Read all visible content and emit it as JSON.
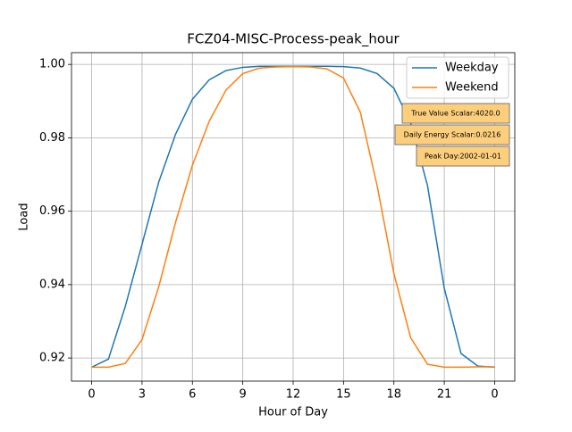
{
  "chart_data": {
    "type": "line",
    "title": "FCZ04-MISC-Process-peak_hour",
    "x_label": "Hour of Day",
    "y_label": "Load",
    "x": [
      0,
      1,
      2,
      3,
      4,
      5,
      6,
      7,
      8,
      9,
      10,
      11,
      12,
      13,
      14,
      15,
      16,
      17,
      18,
      19,
      20,
      21,
      22,
      23,
      24
    ],
    "series": [
      {
        "name": "Weekday",
        "color": "#1f77b4",
        "values": [
          0.9175,
          0.9197,
          0.934,
          0.951,
          0.968,
          0.981,
          0.9905,
          0.9958,
          0.9983,
          0.9992,
          0.9995,
          0.9995,
          0.9995,
          0.9995,
          0.9995,
          0.9994,
          0.999,
          0.9975,
          0.9935,
          0.984,
          0.967,
          0.939,
          0.9212,
          0.9178,
          0.9175
        ]
      },
      {
        "name": "Weekend",
        "color": "#ff7f0e",
        "values": [
          0.9175,
          0.9175,
          0.9185,
          0.925,
          0.9395,
          0.957,
          0.9725,
          0.9845,
          0.993,
          0.9975,
          0.999,
          0.9993,
          0.9994,
          0.9993,
          0.9988,
          0.9963,
          0.987,
          0.967,
          0.943,
          0.9255,
          0.9183,
          0.9175,
          0.9175,
          0.9176,
          0.9176
        ]
      }
    ],
    "xlim": [
      -1.2,
      25.2
    ],
    "xticks": [
      0,
      3,
      6,
      9,
      12,
      15,
      18,
      21,
      {
        "value": 24,
        "label": "0"
      }
    ],
    "ylim": [
      0.9137,
      1.0032
    ],
    "yticks": [
      0.92,
      0.94,
      0.96,
      0.98,
      {
        "value": 1.0,
        "label": "1.00"
      }
    ],
    "grid": true,
    "legend": "upper right",
    "annotations": [
      "True Value Scalar:4020.0",
      "Daily Energy Scalar:0.0216",
      "Peak Day:2002-01-01"
    ]
  }
}
